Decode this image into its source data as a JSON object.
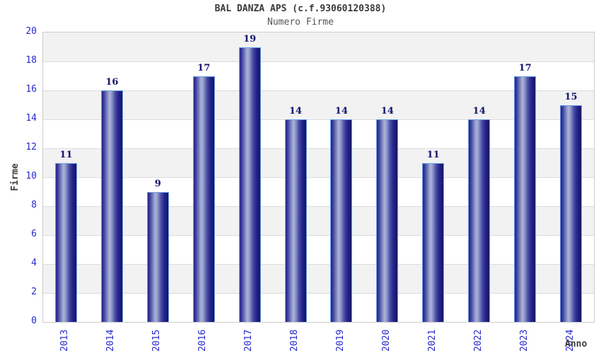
{
  "chart_data": {
    "type": "bar",
    "title": "BAL DANZA APS (c.f.93060120388)",
    "subtitle": "Numero Firme",
    "xlabel": "Anno",
    "ylabel": "Firme",
    "categories": [
      "2013",
      "2014",
      "2015",
      "2016",
      "2017",
      "2018",
      "2019",
      "2020",
      "2021",
      "2022",
      "2023",
      "2024"
    ],
    "values": [
      11,
      16,
      9,
      17,
      19,
      14,
      14,
      14,
      11,
      14,
      17,
      15
    ],
    "ylim": [
      0,
      20
    ],
    "yticks": [
      0,
      2,
      4,
      6,
      8,
      10,
      12,
      14,
      16,
      18,
      20
    ],
    "grid": "alternating-horizontal-bands",
    "legend": "none",
    "colors": {
      "bar_edge_dark": "#15156a",
      "bar_left_dark": "#23238a",
      "bar_mid": "#4b4ea6",
      "bar_highlight": "#adb5da",
      "bar_border": "#6ea3e8",
      "tick_label": "#2727cd",
      "value_label": "#15156e",
      "title": "#3a3a3a",
      "subtitle": "#555555",
      "axis_title": "#3f3f3f",
      "band_gray": "#f2f2f2",
      "band_white": "#ffffff",
      "grid_line": "#dcdcdc",
      "plot_border": "#cccccc",
      "background": "#ffffff"
    }
  }
}
